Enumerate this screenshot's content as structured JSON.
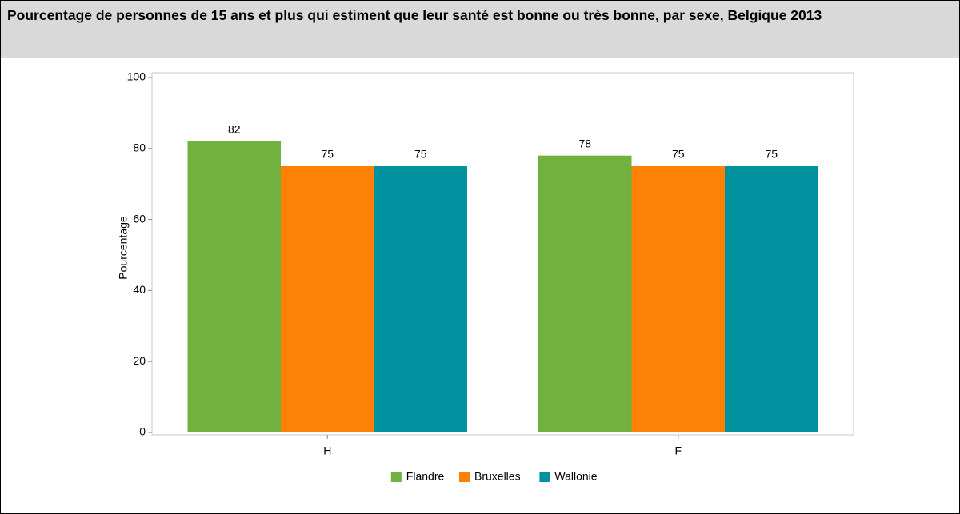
{
  "chart_data": {
    "type": "bar",
    "title": "Pourcentage de personnes de 15 ans et plus qui estiment que leur santé est bonne ou très bonne, par sexe, Belgique 2013",
    "y_label": "Pourcentage",
    "categories": [
      "H",
      "F"
    ],
    "series": [
      {
        "name": "Flandre",
        "color": "#70b13f",
        "values": [
          82,
          78
        ]
      },
      {
        "name": "Bruxelles",
        "color": "#fd8104",
        "values": [
          75,
          75
        ]
      },
      {
        "name": "Wallonie",
        "color": "#00919e",
        "values": [
          75,
          75
        ]
      }
    ],
    "ylim": [
      0,
      100
    ],
    "yticks": [
      0,
      20,
      40,
      60,
      80,
      100
    ],
    "grid": false,
    "legend": "bottom"
  }
}
